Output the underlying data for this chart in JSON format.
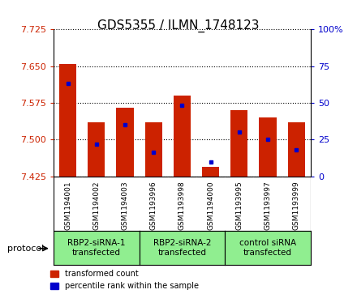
{
  "title": "GDS5355 / ILMN_1748123",
  "samples": [
    "GSM1194001",
    "GSM1194002",
    "GSM1194003",
    "GSM1193996",
    "GSM1193998",
    "GSM1194000",
    "GSM1193995",
    "GSM1193997",
    "GSM1193999"
  ],
  "red_values": [
    7.655,
    7.535,
    7.565,
    7.535,
    7.59,
    7.445,
    7.56,
    7.545,
    7.535
  ],
  "blue_values": [
    7.615,
    7.49,
    7.53,
    7.475,
    7.57,
    7.455,
    7.515,
    7.5,
    7.48
  ],
  "y_min": 7.425,
  "y_max": 7.725,
  "y_ticks": [
    7.425,
    7.5,
    7.575,
    7.65,
    7.725
  ],
  "right_ticks_labels": [
    "0",
    "25",
    "50",
    "75",
    "100%"
  ],
  "right_tick_positions": [
    7.425,
    7.5,
    7.575,
    7.65,
    7.725
  ],
  "groups": [
    {
      "label": "RBP2-siRNA-1\ntransfected",
      "start": 0,
      "end": 3,
      "color": "#90EE90"
    },
    {
      "label": "RBP2-siRNA-2\ntransfected",
      "start": 3,
      "end": 6,
      "color": "#90EE90"
    },
    {
      "label": "control siRNA\ntransfected",
      "start": 6,
      "end": 9,
      "color": "#90EE90"
    }
  ],
  "bar_color": "#CC2200",
  "dot_color": "#0000CC",
  "bar_width": 0.6,
  "base_value": 7.425,
  "left_tick_color": "#CC2200",
  "right_tick_color": "#0000CC",
  "protocol_label": "protocol"
}
